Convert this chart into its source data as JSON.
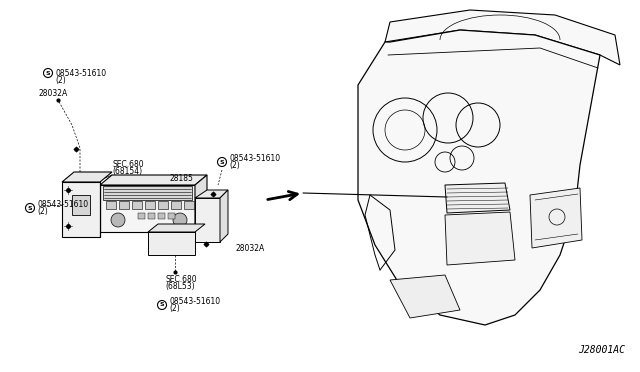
{
  "bg_color": "#ffffff",
  "figure_id": "J28001AC",
  "line_color": "#000000",
  "text_color": "#000000",
  "small_font": 5.5,
  "label_font": 6.0,
  "labels": {
    "bolt1": "08543-51610\n(2)",
    "part_28032A_top": "28032A",
    "sec_68154": "SEC.680\n(68154)",
    "part_28185": "28185",
    "bolt2": "08543-51610\n(2)",
    "bolt3": "08543-51610\n(2)",
    "part_28032A_bot": "28032A",
    "sec_68l53": "SEC.680\n(68L53)",
    "bolt4": "08543-51610\n(2)"
  }
}
